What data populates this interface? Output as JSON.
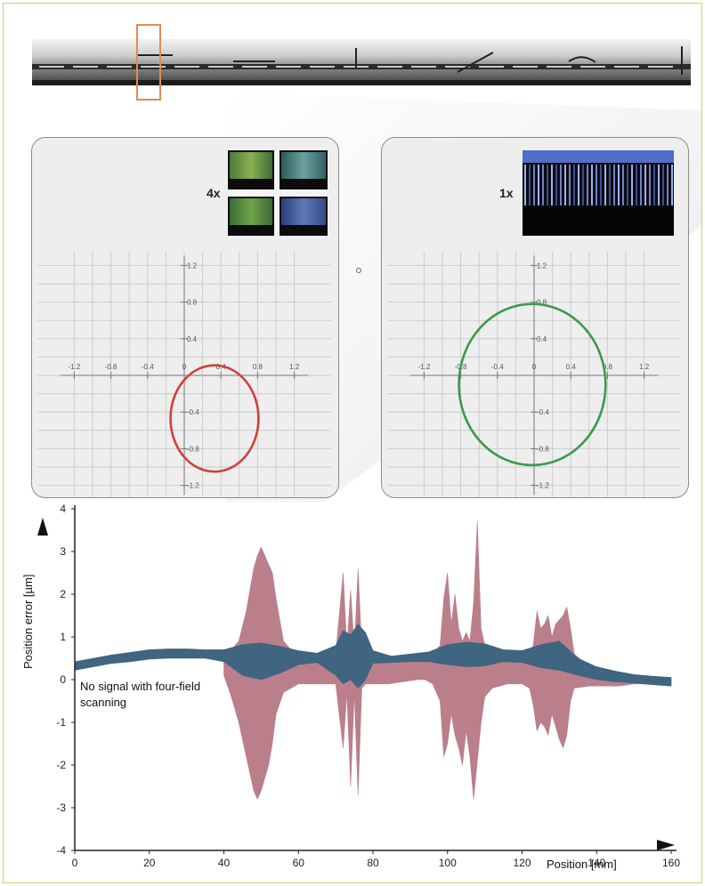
{
  "chart_data": [
    {
      "type": "scatter",
      "subtype": "lissajous",
      "panel": "4x",
      "magnification_label": "4x",
      "xlim": [
        -1.4,
        1.4
      ],
      "ylim": [
        -1.3,
        1.3
      ],
      "ticks": [
        -1.2,
        -0.8,
        -0.4,
        0,
        0.4,
        0.8,
        1.2
      ],
      "x_tick_labels": [
        "-1.2",
        "-0.8",
        "-0.4",
        "0",
        "0.4",
        "0.8",
        "1.2"
      ],
      "y_tick_labels": [
        "1.2",
        "0.8",
        "0.4",
        "0",
        "-0.4",
        "-0.8",
        "-1.2"
      ],
      "grid": true,
      "ellipse": {
        "center": [
          0.33,
          -0.47
        ],
        "radius_x": 0.48,
        "radius_y": 0.58,
        "color": "#d0403a"
      }
    },
    {
      "type": "scatter",
      "subtype": "lissajous",
      "panel": "1x",
      "magnification_label": "1x",
      "xlim": [
        -1.4,
        1.4
      ],
      "ylim": [
        -1.3,
        1.3
      ],
      "ticks": [
        -1.2,
        -0.8,
        -0.4,
        0,
        0.4,
        0.8,
        1.2
      ],
      "x_tick_labels": [
        "-1.2",
        "-0.8",
        "-0.4",
        "0",
        "0.4",
        "0.8",
        "1.2"
      ],
      "y_tick_labels": [
        "1.2",
        "0.8",
        "0.4",
        "0",
        "-0.4",
        "-0.8",
        "-1.2"
      ],
      "grid": true,
      "ellipse": {
        "center": [
          -0.02,
          -0.1
        ],
        "radius_x": 0.8,
        "radius_y": 0.88,
        "color": "#3a9a4c"
      }
    },
    {
      "type": "area",
      "xlabel": "Position [mm]",
      "ylabel": "Position error [µm]",
      "xlim": [
        0,
        160
      ],
      "ylim": [
        -4,
        4
      ],
      "x_ticks": [
        0,
        20,
        40,
        60,
        80,
        100,
        120,
        140,
        160
      ],
      "x_tick_labels": [
        "0",
        "20",
        "40",
        "60",
        "80",
        "100",
        "120",
        "140",
        "160"
      ],
      "y_ticks": [
        4,
        3,
        2,
        1,
        0,
        -1,
        -2,
        -3,
        -4
      ],
      "y_tick_labels": [
        "4",
        "3",
        "2",
        "1",
        "0",
        "-1",
        "-2",
        "-3",
        "-4"
      ],
      "grid": false,
      "annotation": "No signal with four-field scanning",
      "series": [
        {
          "color": "#b87885",
          "x": [
            40,
            42,
            44,
            46,
            48,
            49,
            50,
            51,
            52,
            53,
            54,
            56,
            58,
            59,
            60,
            62,
            66,
            68,
            70,
            72,
            73,
            74,
            75,
            76,
            77,
            78,
            79,
            80,
            84,
            88,
            92,
            94,
            96,
            98,
            99,
            100,
            101,
            102,
            103,
            104,
            105,
            106,
            107,
            108,
            109,
            110,
            112,
            116,
            120,
            122,
            123,
            124,
            125,
            126,
            127,
            128,
            129,
            130,
            131,
            132,
            133,
            134,
            138,
            142,
            146,
            150,
            154,
            158,
            160
          ],
          "upper": [
            0.6,
            0.7,
            0.9,
            1.6,
            2.6,
            2.9,
            3.1,
            2.9,
            2.7,
            2.5,
            1.9,
            0.9,
            0.7,
            0.6,
            0.6,
            0.55,
            0.5,
            0.5,
            0.6,
            2.5,
            0.7,
            2.1,
            0.7,
            2.6,
            0.7,
            0.8,
            0.6,
            0.55,
            0.5,
            0.45,
            0.45,
            0.5,
            0.6,
            0.8,
            1.9,
            2.5,
            1.3,
            2.0,
            1.2,
            0.9,
            1.1,
            0.9,
            1.8,
            3.7,
            1.2,
            0.8,
            0.6,
            0.5,
            0.5,
            0.6,
            0.8,
            1.6,
            1.2,
            1.3,
            1.5,
            1.0,
            1.3,
            1.4,
            1.5,
            1.7,
            1.2,
            0.6,
            0.3,
            0.1,
            0.05,
            0.0,
            0.0,
            0.0,
            0.0
          ],
          "lower": [
            0.1,
            -0.4,
            -1.0,
            -1.8,
            -2.6,
            -2.8,
            -2.6,
            -2.3,
            -2.0,
            -1.5,
            -0.8,
            -0.3,
            -0.2,
            -0.15,
            -0.1,
            -0.1,
            -0.1,
            -0.1,
            -0.1,
            -1.6,
            -0.3,
            -2.5,
            -0.3,
            -2.7,
            -0.2,
            -0.1,
            -0.1,
            -0.1,
            -0.1,
            -0.05,
            0.0,
            0.0,
            -0.1,
            -0.5,
            -1.8,
            -1.5,
            -0.8,
            -1.3,
            -1.6,
            -2.0,
            -1.2,
            -1.8,
            -2.8,
            -1.9,
            -1.0,
            -0.4,
            -0.2,
            -0.1,
            -0.1,
            -0.2,
            -0.6,
            -1.2,
            -1.0,
            -1.1,
            -1.3,
            -0.8,
            -1.1,
            -1.4,
            -1.6,
            -1.3,
            -0.5,
            -0.2,
            -0.15,
            -0.15,
            -0.15,
            -0.1,
            -0.1,
            -0.1,
            -0.1
          ]
        },
        {
          "color": "#3f6580",
          "x": [
            0,
            5,
            10,
            15,
            20,
            25,
            30,
            35,
            40,
            45,
            50,
            55,
            60,
            65,
            70,
            72,
            74,
            76,
            78,
            80,
            85,
            90,
            95,
            100,
            105,
            110,
            115,
            120,
            125,
            130,
            135,
            140,
            145,
            150,
            155,
            160
          ],
          "upper": [
            0.42,
            0.5,
            0.58,
            0.64,
            0.7,
            0.72,
            0.72,
            0.7,
            0.7,
            0.82,
            0.86,
            0.78,
            0.68,
            0.62,
            0.8,
            1.15,
            1.05,
            1.3,
            1.1,
            0.68,
            0.55,
            0.6,
            0.65,
            0.82,
            0.88,
            0.84,
            0.7,
            0.68,
            0.82,
            0.9,
            0.5,
            0.3,
            0.2,
            0.12,
            0.08,
            0.05
          ],
          "lower": [
            0.22,
            0.3,
            0.38,
            0.42,
            0.48,
            0.5,
            0.5,
            0.5,
            0.42,
            0.1,
            0.0,
            0.15,
            0.35,
            0.4,
            0.1,
            -0.1,
            0.0,
            -0.2,
            0.0,
            0.38,
            0.4,
            0.42,
            0.42,
            0.35,
            0.3,
            0.32,
            0.42,
            0.4,
            0.28,
            0.22,
            0.1,
            0.0,
            -0.05,
            -0.08,
            -0.12,
            -0.15
          ]
        }
      ]
    }
  ]
}
